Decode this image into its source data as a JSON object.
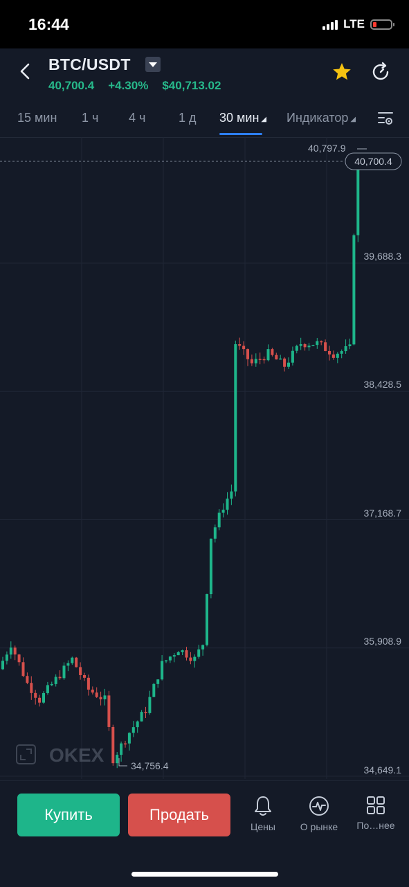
{
  "status_bar": {
    "time": "16:44",
    "network": "LTE"
  },
  "header": {
    "pair": "BTC/USDT",
    "last_price": "40,700.4",
    "change_pct": "+4.30%",
    "usd_price": "$40,713.02"
  },
  "tabs": [
    {
      "label": "15 мин"
    },
    {
      "label": "1 ч"
    },
    {
      "label": "4 ч"
    },
    {
      "label": "1 д"
    },
    {
      "label": "30 мин"
    },
    {
      "label": "Индикатор"
    }
  ],
  "chart": {
    "watermark": "OKEX",
    "high_marker": "40,797.9",
    "current_price_tag": "40,700.4",
    "low_marker": "34,756.4",
    "axis_labels": [
      "39,688.3",
      "38,428.5",
      "37,168.7",
      "35,908.9",
      "34,649.1"
    ],
    "up_color": "#1eb58a",
    "down_color": "#d6504c"
  },
  "chart_data": {
    "type": "candlestick",
    "interval": "30 мин",
    "y_ticks": [
      39688.3,
      38428.5,
      37168.7,
      35908.9,
      34649.1
    ],
    "high": 40797.9,
    "low": 34756.4,
    "last": 40700.4
  },
  "bottom": {
    "buy_label": "Купить",
    "sell_label": "Продать",
    "nav": [
      {
        "label": "Цены",
        "icon": "bell-icon"
      },
      {
        "label": "О рынке",
        "icon": "pulse-icon"
      },
      {
        "label": "По…нее",
        "icon": "grid-icon"
      }
    ]
  }
}
